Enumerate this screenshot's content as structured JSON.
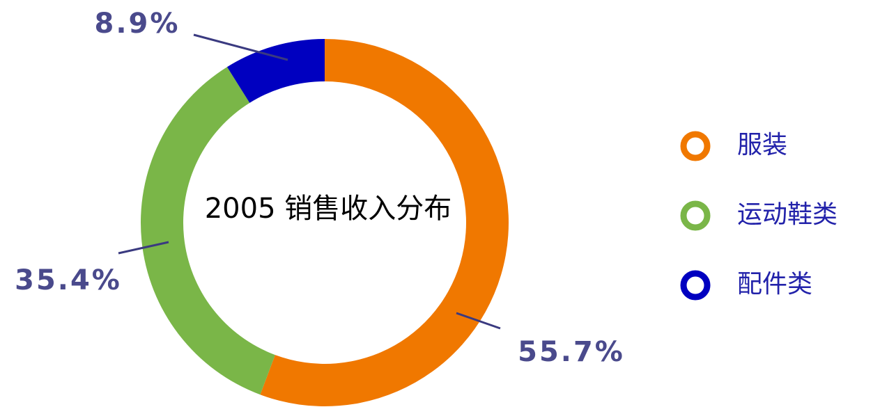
{
  "chart_data": {
    "type": "donut",
    "title": "2005 销售收入分布",
    "categories": [
      "服装",
      "运动鞋类",
      "配件类"
    ],
    "values": [
      55.7,
      35.4,
      8.9
    ],
    "value_labels": [
      "55.7%",
      "35.4%",
      "8.9%"
    ],
    "colors": [
      "#f07800",
      "#7ab648",
      "#0000c0"
    ],
    "legend": "right"
  }
}
